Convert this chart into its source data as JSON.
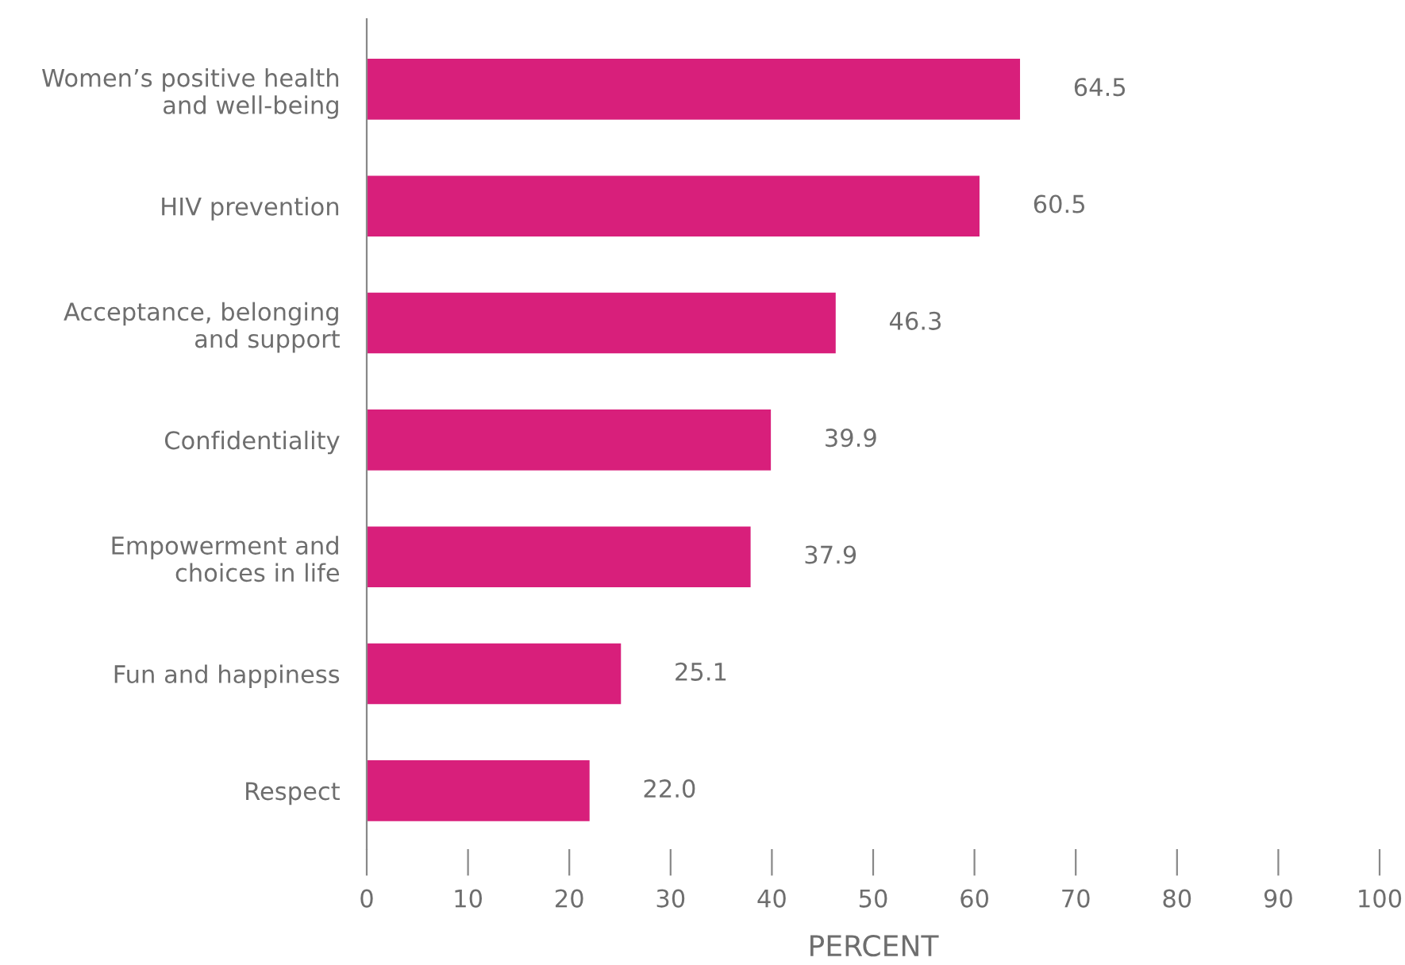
{
  "chart_data": {
    "type": "bar",
    "orientation": "horizontal",
    "xlabel": "PERCENT",
    "categories": [
      "Women’s positive health\nand well-being",
      "HIV prevention",
      "Acceptance, belonging\nand support",
      "Confidentiality",
      "Empowerment and\nchoices in life",
      "Fun and happiness",
      "Respect"
    ],
    "values": [
      64.5,
      60.5,
      46.3,
      39.9,
      37.9,
      25.1,
      22.0
    ],
    "value_labels": [
      "64.5",
      "60.5",
      "46.3",
      "39.9",
      "37.9",
      "25.1",
      "22.0"
    ],
    "color": "#d81f7b",
    "xlim": [
      0,
      100
    ],
    "xticks": [
      0,
      10,
      20,
      30,
      40,
      50,
      60,
      70,
      80,
      90,
      100
    ],
    "grid": false,
    "legend": false
  }
}
